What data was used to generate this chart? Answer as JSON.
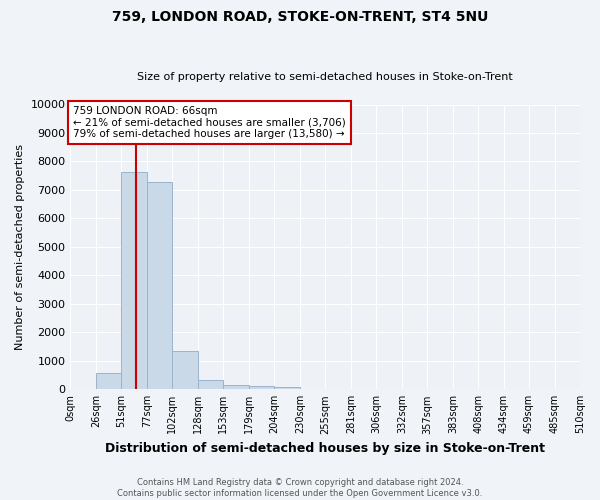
{
  "title": "759, LONDON ROAD, STOKE-ON-TRENT, ST4 5NU",
  "subtitle": "Size of property relative to semi-detached houses in Stoke-on-Trent",
  "xlabel": "Distribution of semi-detached houses by size in Stoke-on-Trent",
  "ylabel": "Number of semi-detached properties",
  "footer_line1": "Contains HM Land Registry data © Crown copyright and database right 2024.",
  "footer_line2": "Contains public sector information licensed under the Open Government Licence v3.0.",
  "annotation_title": "759 LONDON ROAD: 66sqm",
  "annotation_line1": "← 21% of semi-detached houses are smaller (3,706)",
  "annotation_line2": "79% of semi-detached houses are larger (13,580) →",
  "property_size_sqm": 66,
  "bin_edges": [
    0,
    26,
    51,
    77,
    102,
    128,
    153,
    179,
    204,
    230,
    255,
    281,
    306,
    332,
    357,
    383,
    408,
    434,
    459,
    485,
    510
  ],
  "bar_heights": [
    0,
    560,
    7620,
    7280,
    1350,
    310,
    145,
    100,
    80,
    0,
    0,
    0,
    0,
    0,
    0,
    0,
    0,
    0,
    0,
    0
  ],
  "bar_color": "#c9d9e8",
  "bar_edge_color": "#9ab4cb",
  "vline_color": "#cc0000",
  "background_color": "#f0f4f8",
  "plot_bg_color": "#eef2f7",
  "grid_color": "#ffffff",
  "annotation_box_color": "#ffffff",
  "annotation_border_color": "#cc0000",
  "ylim": [
    0,
    10000
  ],
  "yticks": [
    0,
    1000,
    2000,
    3000,
    4000,
    5000,
    6000,
    7000,
    8000,
    9000,
    10000
  ]
}
